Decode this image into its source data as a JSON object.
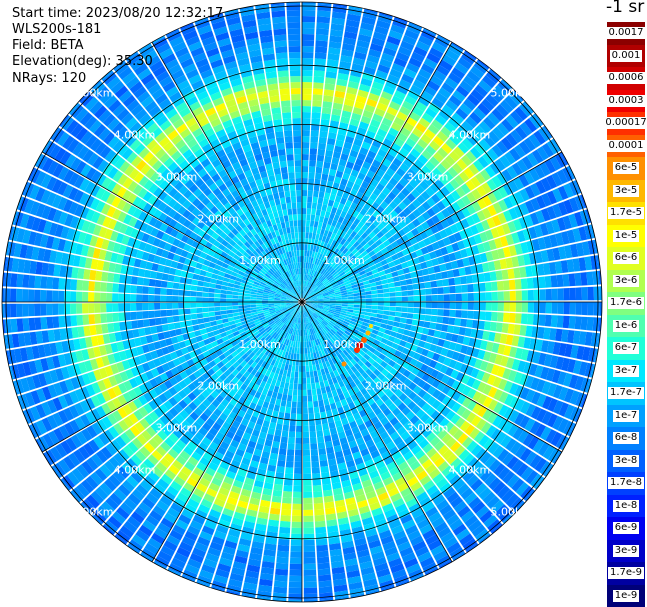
{
  "info": {
    "start_time": "Start time: 2023/08/20 12:32:17",
    "instrument": "WLS200s-181",
    "field": "Field: BETA",
    "elevation": "Elevation(deg): 35.30",
    "nrays": "NRays: 120"
  },
  "range_labels": [
    "1.00km",
    "2.00km",
    "3.00km",
    "4.00km",
    "5.00km"
  ],
  "colorbar": {
    "unit_label": "-1 sr",
    "levels": [
      {
        "label": "0.0017",
        "color": "#8b0000"
      },
      {
        "label": "0.001",
        "color": "#b00000"
      },
      {
        "label": "0.0006",
        "color": "#d00000"
      },
      {
        "label": "0.0003",
        "color": "#f00000"
      },
      {
        "label": "0.00017",
        "color": "#ff3000"
      },
      {
        "label": "0.0001",
        "color": "#ff6000"
      },
      {
        "label": "6e-5",
        "color": "#ff9000"
      },
      {
        "label": "3e-5",
        "color": "#ffb800"
      },
      {
        "label": "1.7e-5",
        "color": "#ffe000"
      },
      {
        "label": "1e-5",
        "color": "#ffff00"
      },
      {
        "label": "6e-6",
        "color": "#e0ff20"
      },
      {
        "label": "3e-6",
        "color": "#b0ff50"
      },
      {
        "label": "1.7e-6",
        "color": "#80ff80"
      },
      {
        "label": "1e-6",
        "color": "#50ffb0"
      },
      {
        "label": "6e-7",
        "color": "#20ffd8"
      },
      {
        "label": "3e-7",
        "color": "#00e8ff"
      },
      {
        "label": "1.7e-7",
        "color": "#00c4ff"
      },
      {
        "label": "1e-7",
        "color": "#00a0ff"
      },
      {
        "label": "6e-8",
        "color": "#0080ff"
      },
      {
        "label": "3e-8",
        "color": "#0060ff"
      },
      {
        "label": "1.7e-8",
        "color": "#0040ff"
      },
      {
        "label": "1e-8",
        "color": "#0020ff"
      },
      {
        "label": "6e-9",
        "color": "#0000f0"
      },
      {
        "label": "3e-9",
        "color": "#0000c8"
      },
      {
        "label": "1.7e-9",
        "color": "#0000a0"
      },
      {
        "label": "1e-9",
        "color": "#000078"
      }
    ]
  },
  "field_profile": {
    "range_km": [
      0.0,
      0.5,
      1.0,
      1.5,
      2.0,
      2.5,
      3.0,
      3.3,
      3.55,
      3.8,
      4.1,
      4.5,
      5.0,
      5.5,
      6.0
    ],
    "colorbar_index": [
      16,
      16,
      16,
      16,
      16,
      17,
      16,
      13,
      9,
      14,
      17,
      18,
      18,
      19,
      19
    ]
  }
}
